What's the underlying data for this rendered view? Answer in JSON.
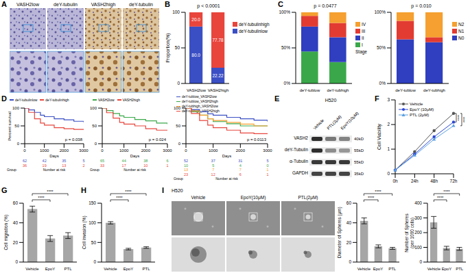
{
  "panel_labels": [
    "A",
    "B",
    "C",
    "D",
    "E",
    "F",
    "G",
    "H",
    "I"
  ],
  "A": {
    "labels": [
      "VASH2low",
      "deY-tubulin",
      "VASH2high",
      "deY-tubulin"
    ]
  },
  "E": {
    "cell_line": "H520",
    "lanes": [
      "Vehicle",
      "PTL(2μM)",
      "EpoY(10μM)"
    ],
    "rows": [
      {
        "protein": "VASH2",
        "size": "40kD"
      },
      {
        "protein": "deY-Tubulin",
        "size": "55kD"
      },
      {
        "protein": "α-Tubulin",
        "size": "55kD"
      },
      {
        "protein": "GAPDH",
        "size": "35kD"
      }
    ]
  },
  "I_images": {
    "cell_line": "H520",
    "labels": [
      "Vehicle",
      "EpoY(10μM)",
      "PTL(2μM)"
    ]
  },
  "chart_data": [
    {
      "type": "bar",
      "stacked": true,
      "data_labels": true,
      "legend": "right",
      "categories": [
        "VASH2low",
        "VASH2high"
      ],
      "series": [
        {
          "name": "deY-tubulinlow",
          "color": "#3b4fc4",
          "values": [
            80.0,
            22.22
          ],
          "value_labels": [
            "80.0",
            "22.22"
          ]
        },
        {
          "name": "deY-tubulinhigh",
          "color": "#e8453c",
          "values": [
            20.0,
            77.78
          ],
          "value_labels": [
            "20.0",
            "77.78"
          ]
        }
      ],
      "y_label": "Proportion(%)",
      "ylim": [
        0,
        100
      ],
      "yticks": [
        0,
        50,
        100
      ],
      "annotations": [
        "p < 0.0001"
      ]
    },
    {
      "type": "bar",
      "stacked": true,
      "legend": "right",
      "categories": [
        "deY-tublow",
        "deY-tubhigh"
      ],
      "series": [
        {
          "name": "I",
          "color": "#3aa84a",
          "values": [
            45,
            30
          ]
        },
        {
          "name": "II",
          "color": "#2f3fc0",
          "values": [
            35,
            35
          ]
        },
        {
          "name": "III",
          "color": "#e23b32",
          "values": [
            15,
            20
          ]
        },
        {
          "name": "IV",
          "color": "#f5a030",
          "values": [
            5,
            15
          ]
        }
      ],
      "ylim": [
        0,
        100
      ],
      "yticks": [
        {
          "value": 0,
          "label": "0%"
        },
        {
          "value": 50,
          "label": "50%"
        },
        {
          "value": 100,
          "label": "100%"
        }
      ],
      "annotations": [
        "p = 0.0477",
        "Stage"
      ]
    },
    {
      "type": "bar",
      "stacked": true,
      "legend": "right",
      "categories": [
        "deY-tublow",
        "deY-tubhigh"
      ],
      "series": [
        {
          "name": "N0",
          "color": "#2f3fc0",
          "values": [
            62,
            58
          ]
        },
        {
          "name": "N1",
          "color": "#e23b32",
          "values": [
            26,
            7
          ]
        },
        {
          "name": "N2",
          "color": "#f5a030",
          "values": [
            12,
            35
          ]
        }
      ],
      "ylim": [
        0,
        100
      ],
      "yticks": [
        {
          "value": 0,
          "label": "0%"
        },
        {
          "value": 50,
          "label": "50%"
        },
        {
          "value": 100,
          "label": "100%"
        }
      ],
      "annotations": [
        "p = 0.010"
      ]
    },
    {
      "type": "step",
      "legend": "top",
      "x": [
        0,
        200,
        500,
        800,
        1000,
        1500,
        2000,
        2500,
        3000
      ],
      "series": [
        {
          "name": "deY-tubulinlow",
          "color": "#3b4fc4",
          "values": [
            100,
            95,
            88,
            80,
            76,
            70,
            67,
            63,
            60
          ],
          "at_risk": [
            62,
            42,
            35,
            5
          ]
        },
        {
          "name": "deY-tubulinhigh",
          "color": "#e8453c",
          "values": [
            100,
            88,
            70,
            58,
            52,
            45,
            42,
            40,
            40
          ],
          "at_risk": [
            36,
            19,
            13,
            2
          ]
        }
      ],
      "x_label": "Days",
      "y_label": "Percent survival",
      "xlim": [
        0,
        3000
      ],
      "xticks": [
        0,
        1000,
        2000,
        3000
      ],
      "ylim": [
        0,
        100
      ],
      "yticks": [
        0,
        50,
        100
      ],
      "annotations": [
        "p = 0.038",
        "Group",
        "Number at risk"
      ]
    },
    {
      "type": "step",
      "legend": "top",
      "x": [
        0,
        200,
        500,
        800,
        1000,
        1500,
        2000,
        2500,
        3000
      ],
      "series": [
        {
          "name": "VASH2low",
          "color": "#3aa84a",
          "values": [
            100,
            93,
            85,
            78,
            74,
            68,
            64,
            58,
            55
          ],
          "at_risk": [
            65,
            44,
            38,
            6
          ]
        },
        {
          "name": "VASH2high",
          "color": "#e8453c",
          "values": [
            100,
            87,
            72,
            60,
            55,
            50,
            42,
            38,
            38
          ],
          "at_risk": [
            33,
            17,
            10,
            1
          ]
        }
      ],
      "x_label": "Days",
      "xlim": [
        0,
        3000
      ],
      "xticks": [
        0,
        1000,
        2000,
        3000
      ],
      "ylim": [
        0,
        100
      ],
      "yticks": [
        0,
        50,
        100
      ],
      "annotations": [
        "p = 0.024",
        "Group",
        "Number at risk"
      ]
    },
    {
      "type": "step",
      "legend": "top",
      "x": [
        0,
        200,
        500,
        800,
        1000,
        1500,
        2000,
        2500,
        3000
      ],
      "series": [
        {
          "name": "deY-tublow_VASH2low",
          "color": "#3b4fc4",
          "values": [
            100,
            96,
            90,
            84,
            80,
            74,
            70,
            66,
            62
          ],
          "at_risk": [
            52,
            37,
            31,
            5
          ]
        },
        {
          "name": "deY-tublow_VASH2high",
          "color": "#3aa84a",
          "values": [
            100,
            90,
            80,
            70,
            62,
            56,
            50,
            50,
            50
          ],
          "at_risk": [
            10,
            5,
            4,
            0
          ]
        },
        {
          "name": "deY-tubhigh_VASH2low",
          "color": "#f5a030",
          "values": [
            100,
            92,
            80,
            70,
            65,
            60,
            55,
            50,
            50
          ],
          "at_risk": [
            13,
            7,
            7,
            1
          ]
        },
        {
          "name": "deY-tubhigh_VASH2high",
          "color": "#e8453c",
          "values": [
            100,
            85,
            65,
            52,
            45,
            38,
            30,
            28,
            28
          ],
          "at_risk": [
            23,
            12,
            6,
            1
          ]
        }
      ],
      "x_label": "Days",
      "xlim": [
        0,
        3000
      ],
      "xticks": [
        0,
        1000,
        2000,
        3000
      ],
      "ylim": [
        0,
        100
      ],
      "yticks": [
        0,
        50,
        100
      ],
      "annotations": [
        "p = 0.0113",
        "Group",
        "Number at risk"
      ]
    },
    {
      "type": "line",
      "legend": "upper left",
      "categories": [
        "0h",
        "24h",
        "48h",
        "72h"
      ],
      "series": [
        {
          "name": "Vehicle",
          "color": "#555555",
          "marker": "circle",
          "values": [
            0.15,
            0.9,
            1.75,
            2.45
          ]
        },
        {
          "name": "EpoY (10μM)",
          "color": "#2b46d6",
          "marker": "circle",
          "values": [
            0.15,
            0.8,
            1.5,
            2.1
          ]
        },
        {
          "name": "PTL (2μM)",
          "color": "#5aa0e0",
          "marker": "triangle",
          "values": [
            0.15,
            0.75,
            1.4,
            1.95
          ]
        }
      ],
      "y_label": "Cell Viability",
      "ylim": [
        0,
        3
      ],
      "yticks": [
        0,
        1,
        2,
        3
      ],
      "annotations": [
        "****",
        "****"
      ]
    },
    {
      "type": "bar",
      "categories": [
        "Vehicle",
        "EpoY",
        "PTL"
      ],
      "values": [
        54,
        24,
        27
      ],
      "errors": [
        3,
        3,
        3
      ],
      "color": "#a6a6a6",
      "y_label": "Cell migration (%)",
      "ylim": [
        0,
        60
      ],
      "yticks": [
        0,
        20,
        40,
        60
      ],
      "annotations": [
        "****",
        "****"
      ]
    },
    {
      "type": "bar",
      "categories": [
        "Vehicle",
        "EpoY",
        "PTL"
      ],
      "values": [
        100,
        33,
        37
      ],
      "errors": [
        3,
        2,
        2
      ],
      "color": "#a6a6a6",
      "y_label": "Cell invasion (%)",
      "ylim": [
        0,
        150
      ],
      "yticks": [
        0,
        50,
        100,
        150
      ],
      "annotations": [
        "****",
        "****"
      ]
    },
    {
      "type": "bar",
      "categories": [
        "Vehicle",
        "EpoY",
        "PTL"
      ],
      "values": [
        42,
        16,
        14
      ],
      "errors": [
        3,
        1.5,
        1
      ],
      "color": "#a6a6a6",
      "y_label": "Diameter of Spheres (μm)",
      "ylim": [
        0,
        60
      ],
      "yticks": [
        0,
        20,
        40,
        60
      ],
      "annotations": [
        "****",
        "****"
      ]
    },
    {
      "type": "bar",
      "categories": [
        "Vehicle",
        "EpoY",
        "PTL"
      ],
      "values": [
        270,
        95,
        90
      ],
      "errors": [
        40,
        12,
        10
      ],
      "color": "#a6a6a6",
      "y_label": [
        "Number of Spheres",
        "(per 1000 cells)"
      ],
      "ylim": [
        0,
        400
      ],
      "yticks": [
        0,
        100,
        200,
        300,
        400
      ],
      "annotations": [
        "****",
        "****"
      ]
    }
  ]
}
